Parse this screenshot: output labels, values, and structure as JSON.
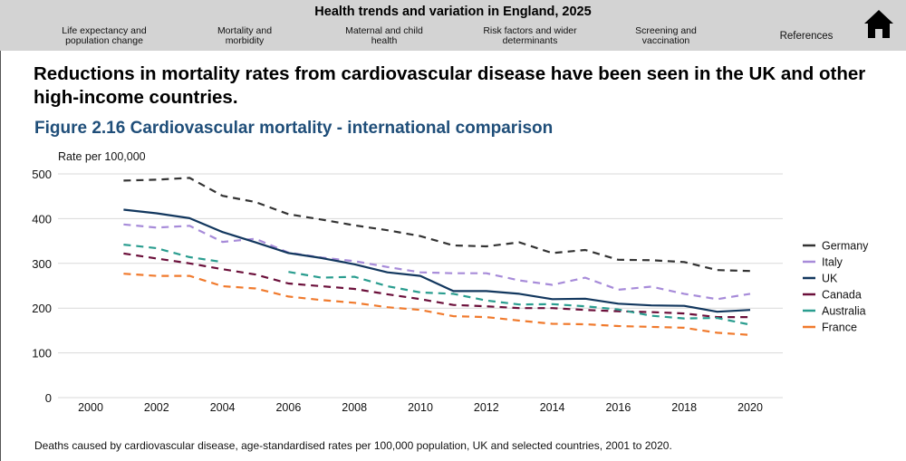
{
  "header": {
    "title": "Health trends and variation in England, 2025",
    "nav": [
      {
        "label_line1": "Life expectancy and",
        "label_line2": "population change"
      },
      {
        "label_line1": "Mortality and",
        "label_line2": "morbidity"
      },
      {
        "label_line1": "Maternal and child",
        "label_line2": "health"
      },
      {
        "label_line1": "Risk factors and wider",
        "label_line2": "determinants"
      },
      {
        "label_line1": "Screening and",
        "label_line2": "vaccination"
      },
      {
        "label_line1": "References",
        "label_line2": ""
      }
    ],
    "home_icon": "home-icon"
  },
  "main": {
    "headline": "Reductions in mortality rates from cardiovascular disease have been seen in the UK and other high-income countries.",
    "figure_title": "Figure 2.16 Cardiovascular mortality - international comparison",
    "caption": "Deaths caused by cardiovascular disease, age-standardised rates per 100,000 population, UK and selected countries, 2001 to 2020."
  },
  "chart_data": {
    "type": "line",
    "title": "Figure 2.16 Cardiovascular mortality - international comparison",
    "xlabel": "",
    "ylabel": "Rate per 100,000",
    "xlim": [
      1999.5,
      2021
    ],
    "ylim": [
      0,
      500
    ],
    "x_ticks": [
      2000,
      2002,
      2004,
      2006,
      2008,
      2010,
      2012,
      2014,
      2016,
      2018,
      2020
    ],
    "y_ticks": [
      0,
      100,
      200,
      300,
      400,
      500
    ],
    "grid": "horizontal",
    "legend_position": "right",
    "x": [
      2001,
      2002,
      2003,
      2004,
      2005,
      2006,
      2007,
      2008,
      2009,
      2010,
      2011,
      2012,
      2013,
      2014,
      2015,
      2016,
      2017,
      2018,
      2019,
      2020
    ],
    "series": [
      {
        "name": "Germany",
        "color": "#333333",
        "dashed": true,
        "values": [
          485,
          487,
          491,
          451,
          437,
          410,
          398,
          385,
          374,
          361,
          340,
          338,
          347,
          323,
          330,
          308,
          307,
          303,
          285,
          283
        ]
      },
      {
        "name": "Italy",
        "color": "#a78bd9",
        "dashed": true,
        "values": [
          387,
          380,
          384,
          348,
          355,
          324,
          313,
          305,
          292,
          280,
          278,
          278,
          262,
          252,
          268,
          241,
          248,
          232,
          220,
          232
        ]
      },
      {
        "name": "UK",
        "color": "#12375e",
        "dashed": false,
        "values": [
          420,
          412,
          401,
          370,
          347,
          323,
          312,
          298,
          280,
          272,
          238,
          238,
          232,
          220,
          221,
          210,
          206,
          205,
          192,
          196
        ]
      },
      {
        "name": "Canada",
        "color": "#6b0f3a",
        "dashed": true,
        "values": [
          322,
          311,
          300,
          287,
          275,
          255,
          249,
          243,
          231,
          220,
          207,
          204,
          200,
          200,
          196,
          193,
          191,
          188,
          180,
          180
        ]
      },
      {
        "name": "Australia",
        "color": "#2a9d8f",
        "dashed": true,
        "values": [
          342,
          334,
          314,
          303,
          null,
          281,
          268,
          270,
          249,
          235,
          232,
          217,
          208,
          209,
          204,
          197,
          183,
          177,
          178,
          163
        ]
      },
      {
        "name": "France",
        "color": "#f07a2d",
        "dashed": true,
        "values": [
          277,
          272,
          272,
          249,
          244,
          226,
          218,
          212,
          202,
          196,
          182,
          180,
          172,
          165,
          164,
          160,
          158,
          156,
          145,
          140
        ]
      }
    ]
  }
}
